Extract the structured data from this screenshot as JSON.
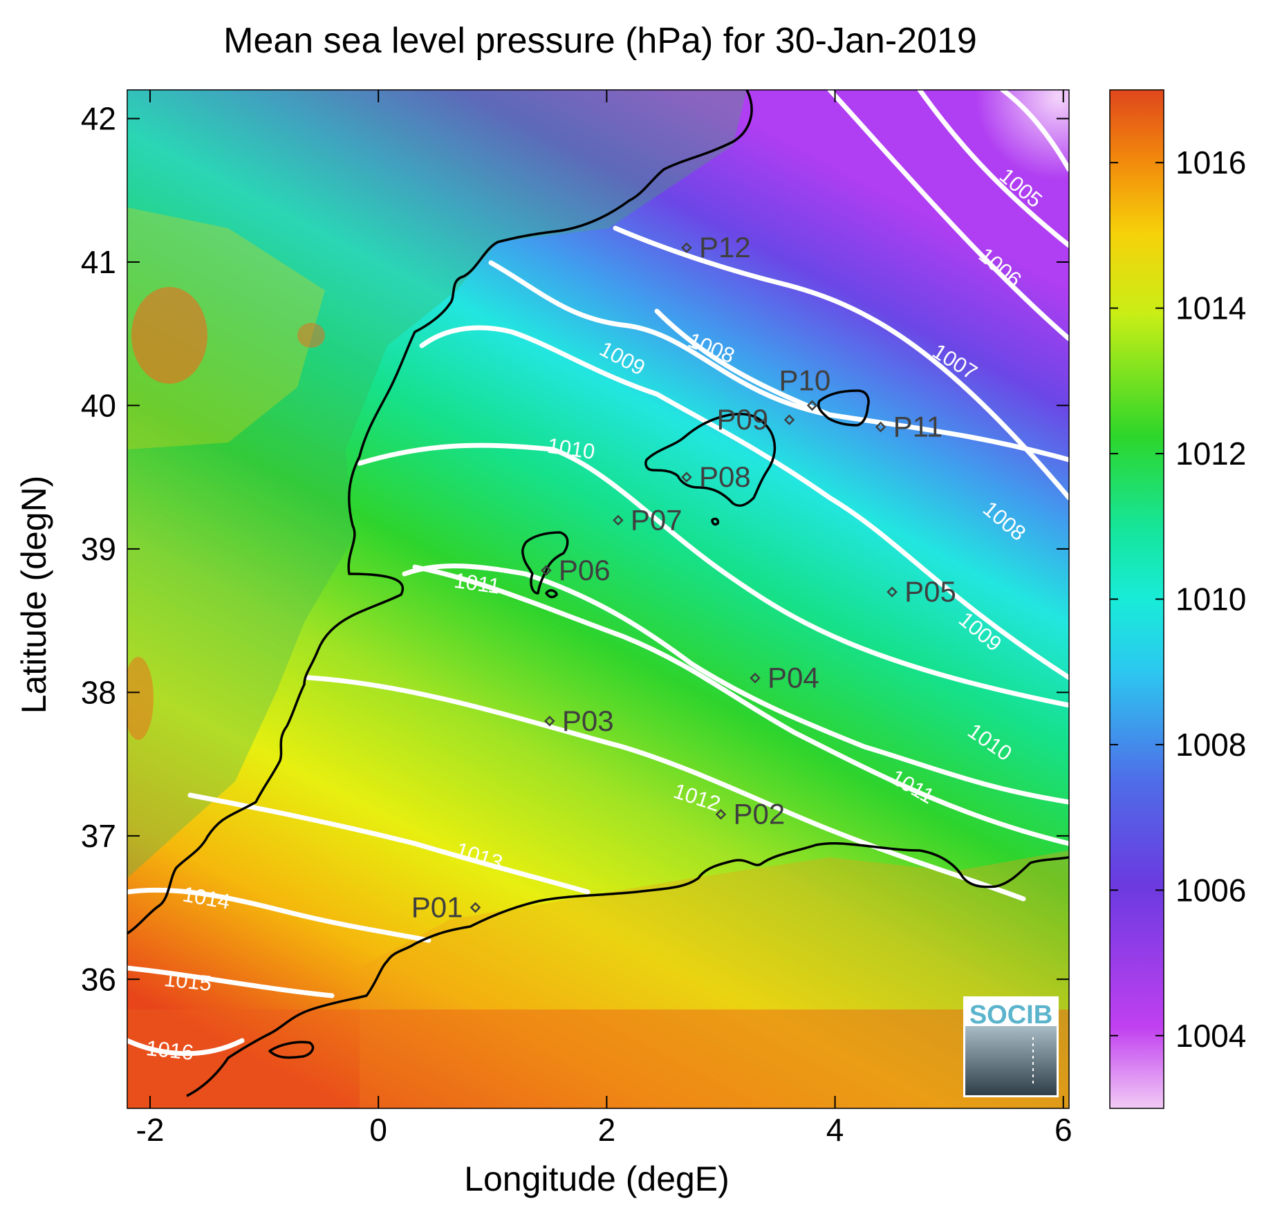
{
  "title": "Mean sea level pressure (hPa) for 30-Jan-2019",
  "xlabel": "Longitude (degE)",
  "ylabel": "Latitude (degN)",
  "x_ticks": [
    "-2",
    "0",
    "2",
    "4",
    "6"
  ],
  "y_ticks": [
    "42",
    "41",
    "40",
    "39",
    "38",
    "37",
    "36"
  ],
  "colorbar_ticks": [
    "1016",
    "1014",
    "1012",
    "1010",
    "1008",
    "1006",
    "1004"
  ],
  "colorbar_range": [
    1003,
    1017
  ],
  "xlim": [
    -2.2,
    6.05
  ],
  "ylim": [
    35.1,
    42.2
  ],
  "logo_text": "SOCIB",
  "contours": [
    {
      "label": "1005"
    },
    {
      "label": "1006"
    },
    {
      "label": "1007"
    },
    {
      "label": "1008"
    },
    {
      "label": "1008"
    },
    {
      "label": "1009"
    },
    {
      "label": "1009"
    },
    {
      "label": "1010"
    },
    {
      "label": "1010"
    },
    {
      "label": "1011"
    },
    {
      "label": "1011"
    },
    {
      "label": "1012"
    },
    {
      "label": "1013"
    },
    {
      "label": "1014"
    },
    {
      "label": "1015"
    },
    {
      "label": "1016"
    }
  ],
  "stations": [
    {
      "name": "P01",
      "lon": 0.85,
      "lat": 36.5
    },
    {
      "name": "P02",
      "lon": 3.0,
      "lat": 37.15
    },
    {
      "name": "P03",
      "lon": 1.5,
      "lat": 37.8
    },
    {
      "name": "P04",
      "lon": 3.3,
      "lat": 38.1
    },
    {
      "name": "P05",
      "lon": 4.5,
      "lat": 38.7
    },
    {
      "name": "P06",
      "lon": 1.47,
      "lat": 38.85
    },
    {
      "name": "P07",
      "lon": 2.1,
      "lat": 39.2
    },
    {
      "name": "P08",
      "lon": 2.7,
      "lat": 39.5
    },
    {
      "name": "P09",
      "lon": 3.6,
      "lat": 39.9
    },
    {
      "name": "P10",
      "lon": 3.8,
      "lat": 40.0
    },
    {
      "name": "P11",
      "lon": 4.4,
      "lat": 39.85
    },
    {
      "name": "P12",
      "lon": 2.7,
      "lat": 41.1
    }
  ],
  "colors": {
    "contour": "#ffffff",
    "coast": "#000000",
    "station": "#3f3f3f",
    "logo": "#5ab4cc"
  }
}
